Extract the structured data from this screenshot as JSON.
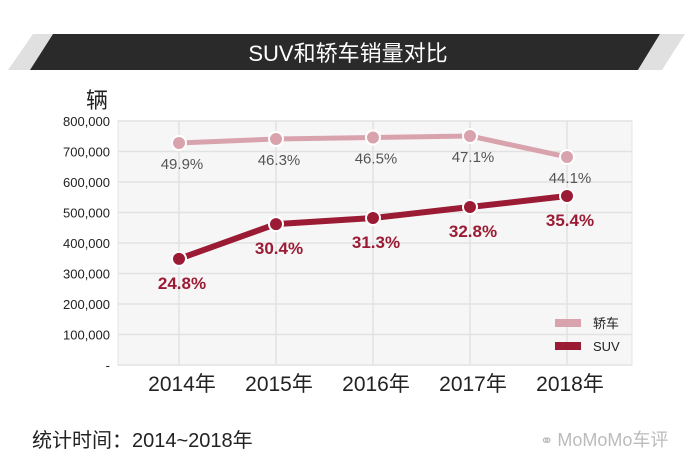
{
  "chart_data": {
    "type": "line",
    "title": "SUV和轿车销量对比",
    "ylabel": "辆",
    "xlabel": "",
    "categories": [
      "2014年",
      "2015年",
      "2016年",
      "2017年",
      "2018年"
    ],
    "ylim": [
      0,
      800000
    ],
    "yticks": [
      0,
      100000,
      200000,
      300000,
      400000,
      500000,
      600000,
      700000,
      800000
    ],
    "ytick_labels": [
      "-",
      "100,000",
      "200,000",
      "300,000",
      "400,000",
      "500,000",
      "600,000",
      "700,000",
      "800,000"
    ],
    "grid": true,
    "legend_position": "bottom-right",
    "series": [
      {
        "name": "轿车",
        "color": "#d9a3ae",
        "values": [
          728000,
          741000,
          746000,
          751000,
          682000
        ],
        "labels": [
          "49.9%",
          "46.3%",
          "46.5%",
          "47.1%",
          "44.1%"
        ],
        "label_color": "#555555"
      },
      {
        "name": "SUV",
        "color": "#9b1b34",
        "values": [
          348000,
          462000,
          482000,
          518000,
          554000
        ],
        "labels": [
          "24.8%",
          "30.4%",
          "31.3%",
          "32.8%",
          "35.4%"
        ],
        "label_color": "#9b1b34"
      }
    ]
  },
  "footer": {
    "note": "统计时间：2014~2018年",
    "brand": "MoMoMo车评",
    "brand_icon": "wechat-icon"
  }
}
